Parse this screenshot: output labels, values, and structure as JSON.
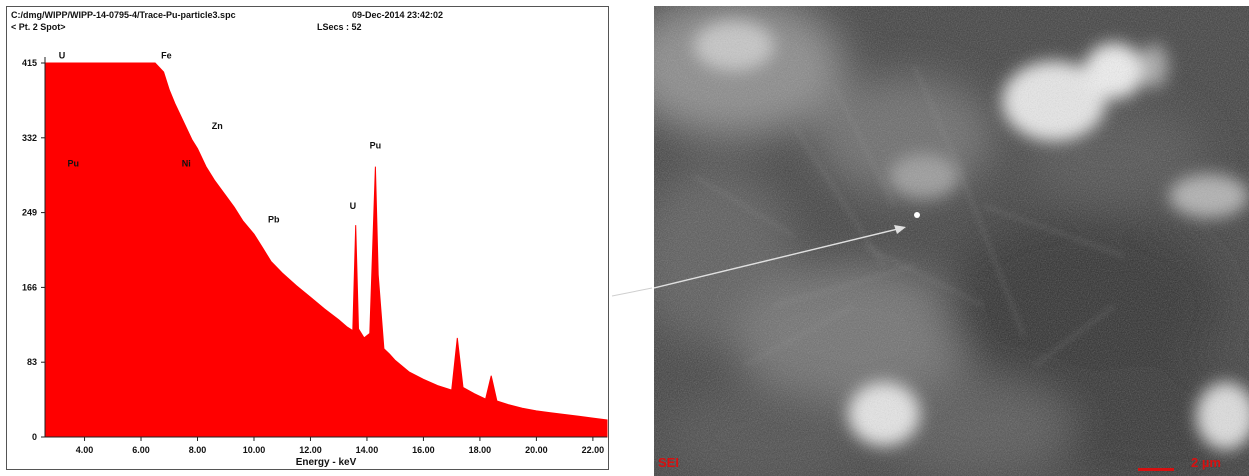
{
  "spectrum": {
    "header_path": "C:/dmg/WIPP/WIPP-14-0795-4/Trace-Pu-particle3.spc",
    "header_date": "09-Dec-2014 23:42:02",
    "header_spot": "< Pt. 2 Spot>",
    "header_lsecs": "LSecs :  52"
  },
  "chart_data": {
    "type": "area",
    "xlabel": "Energy - keV",
    "xlim": [
      2.6,
      22.5
    ],
    "ylim": [
      0,
      415
    ],
    "x_ticks": [
      "4.00",
      "6.00",
      "8.00",
      "10.00",
      "12.00",
      "14.00",
      "16.00",
      "18.00",
      "20.00",
      "22.00"
    ],
    "x_tick_values": [
      4,
      6,
      8,
      10,
      12,
      14,
      16,
      18,
      20,
      22
    ],
    "y_ticks": [
      "0",
      "83",
      "166",
      "249",
      "332",
      "415"
    ],
    "y_tick_values": [
      0,
      83,
      166,
      249,
      332,
      415
    ],
    "color": "#ff0000",
    "x": [
      2.6,
      6.5,
      6.8,
      7.0,
      7.2,
      7.5,
      7.8,
      8.0,
      8.3,
      8.6,
      9.0,
      9.3,
      9.6,
      10.0,
      10.3,
      10.6,
      11.0,
      11.5,
      12.0,
      12.5,
      13.0,
      13.3,
      13.5,
      13.6,
      13.7,
      13.9,
      14.1,
      14.3,
      14.4,
      14.6,
      14.8,
      15.0,
      15.5,
      16.0,
      16.5,
      17.0,
      17.2,
      17.4,
      17.8,
      18.2,
      18.4,
      18.6,
      19.0,
      19.5,
      20.0,
      20.5,
      21.0,
      21.5,
      22.0,
      22.5
    ],
    "y": [
      415,
      415,
      405,
      385,
      370,
      350,
      330,
      320,
      300,
      285,
      268,
      255,
      240,
      225,
      210,
      195,
      182,
      168,
      155,
      142,
      130,
      122,
      118,
      235,
      120,
      110,
      115,
      300,
      180,
      98,
      92,
      85,
      72,
      64,
      57,
      52,
      110,
      55,
      48,
      42,
      68,
      40,
      36,
      32,
      29,
      27,
      25,
      23,
      21,
      19
    ],
    "peak_labels": [
      {
        "label": "U",
        "x": 3.2,
        "y": 420
      },
      {
        "label": "Fe",
        "x": 6.9,
        "y": 420
      },
      {
        "label": "Zn",
        "x": 8.7,
        "y": 342
      },
      {
        "label": "Pu",
        "x": 3.6,
        "y": 300
      },
      {
        "label": "Ni",
        "x": 7.6,
        "y": 300
      },
      {
        "label": "Pb",
        "x": 10.7,
        "y": 238
      },
      {
        "label": "U",
        "x": 13.5,
        "y": 253
      },
      {
        "label": "Pu",
        "x": 14.3,
        "y": 320
      }
    ]
  },
  "sem_image": {
    "scale_label": "2 µm",
    "corner_label": "SEI"
  }
}
